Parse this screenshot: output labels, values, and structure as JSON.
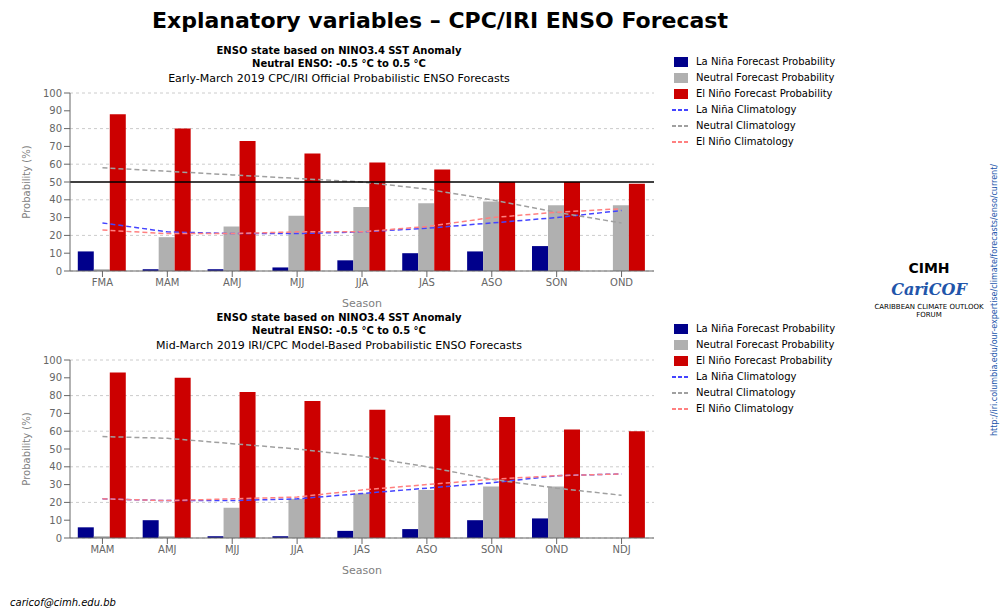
{
  "title": "Explanatory variables – CPC/IRI ENSO Forecast",
  "subtitle": "caricof@cimh.edu.bb",
  "annotations": [
    {
      "text": "http://iri.columbia.edu/our-expertise/climate/forecasts/enso/current/",
      "color": "#2255AA"
    },
    {
      "text": "CIMH"
    },
    {
      "text": "CariCOF",
      "color": "#2255AA"
    },
    {
      "text": "CARIBBEAN CLIMATE OUTLOOK FORUM"
    }
  ],
  "chart_data": [
    {
      "type": "bar",
      "title": "Early-March 2019 CPC/IRI Official Probabilistic ENSO Forecasts",
      "subtitle": [
        "ENSO state based on NINO3.4 SST Anomaly",
        "Neutral ENSO: -0.5 °C to 0.5 °C"
      ],
      "xlabel": "Season",
      "ylabel": "Probability (%)",
      "categories": [
        "FMA",
        "MAM",
        "AMJ",
        "MJJ",
        "JJA",
        "JAS",
        "ASO",
        "SON",
        "OND"
      ],
      "series": [
        {
          "name": "La Niña Forecast Probability",
          "type": "bar",
          "color": "#00008B",
          "values": [
            11,
            1,
            1,
            2,
            6,
            10,
            11,
            14,
            0
          ]
        },
        {
          "name": "Neutral Forecast Probability",
          "type": "bar",
          "color": "#B0B0B0",
          "values": [
            1,
            19,
            25,
            31,
            36,
            38,
            39,
            37,
            37
          ]
        },
        {
          "name": "El Niño Forecast Probability",
          "type": "bar",
          "color": "#CC0000",
          "values": [
            88,
            80,
            73,
            66,
            61,
            57,
            50,
            50,
            49
          ]
        },
        {
          "name": "La Niña Climatology",
          "type": "line",
          "line_style": "dashed",
          "color": "#4444FF",
          "values": [
            27,
            22,
            21,
            21,
            22,
            24,
            27,
            30,
            34
          ]
        },
        {
          "name": "Neutral Climatology",
          "type": "line",
          "line_style": "dashed",
          "color": "#A0A0A0",
          "values": [
            58,
            56,
            54,
            52,
            50,
            46,
            40,
            33,
            27
          ]
        },
        {
          "name": "El Niño Climatology",
          "type": "line",
          "line_style": "dashed",
          "color": "#FF8080",
          "values": [
            23,
            21,
            21,
            22,
            22,
            25,
            30,
            33,
            35
          ]
        }
      ],
      "reference_lines": [
        {
          "y": 50,
          "color": "#000000"
        }
      ],
      "ylim": [
        0,
        100
      ],
      "yticks": [
        0,
        10,
        20,
        30,
        40,
        50,
        60,
        70,
        80,
        90,
        100
      ],
      "grid": "y",
      "legend": "right"
    },
    {
      "type": "bar",
      "title": "Mid-March 2019 IRI/CPC Model-Based Probabilistic ENSO Forecasts",
      "subtitle": [
        "ENSO state based on NINO3.4 SST Anomaly",
        "Neutral ENSO: -0.5 °C to 0.5 °C"
      ],
      "xlabel": "Season",
      "ylabel": "Probability (%)",
      "categories": [
        "MAM",
        "AMJ",
        "MJJ",
        "JJA",
        "JAS",
        "ASO",
        "SON",
        "OND",
        "NDJ"
      ],
      "series": [
        {
          "name": "La Niña Forecast Probability",
          "type": "bar",
          "color": "#00008B",
          "values": [
            6,
            10,
            1,
            1,
            4,
            5,
            10,
            11,
            0
          ]
        },
        {
          "name": "Neutral Forecast Probability",
          "type": "bar",
          "color": "#B0B0B0",
          "values": [
            1,
            1,
            17,
            22,
            25,
            27,
            29,
            29,
            0
          ]
        },
        {
          "name": "El Niño Forecast Probability",
          "type": "bar",
          "color": "#CC0000",
          "values": [
            93,
            90,
            82,
            77,
            72,
            69,
            68,
            61,
            60
          ]
        },
        {
          "name": "La Niña Climatology",
          "type": "line",
          "line_style": "dashed",
          "color": "#4444FF",
          "values": [
            22,
            21,
            21,
            22,
            25,
            28,
            31,
            35,
            36
          ]
        },
        {
          "name": "Neutral Climatology",
          "type": "line",
          "line_style": "dashed",
          "color": "#A0A0A0",
          "values": [
            57,
            56,
            53,
            50,
            46,
            40,
            33,
            28,
            24
          ]
        },
        {
          "name": "El Niño Climatology",
          "type": "line",
          "line_style": "dashed",
          "color": "#FF8080",
          "values": [
            22,
            21,
            22,
            23,
            27,
            30,
            33,
            35,
            36
          ]
        }
      ],
      "ylim": [
        0,
        100
      ],
      "yticks": [
        0,
        10,
        20,
        30,
        40,
        50,
        60,
        70,
        80,
        90,
        100
      ],
      "grid": "y",
      "legend": "right"
    }
  ]
}
